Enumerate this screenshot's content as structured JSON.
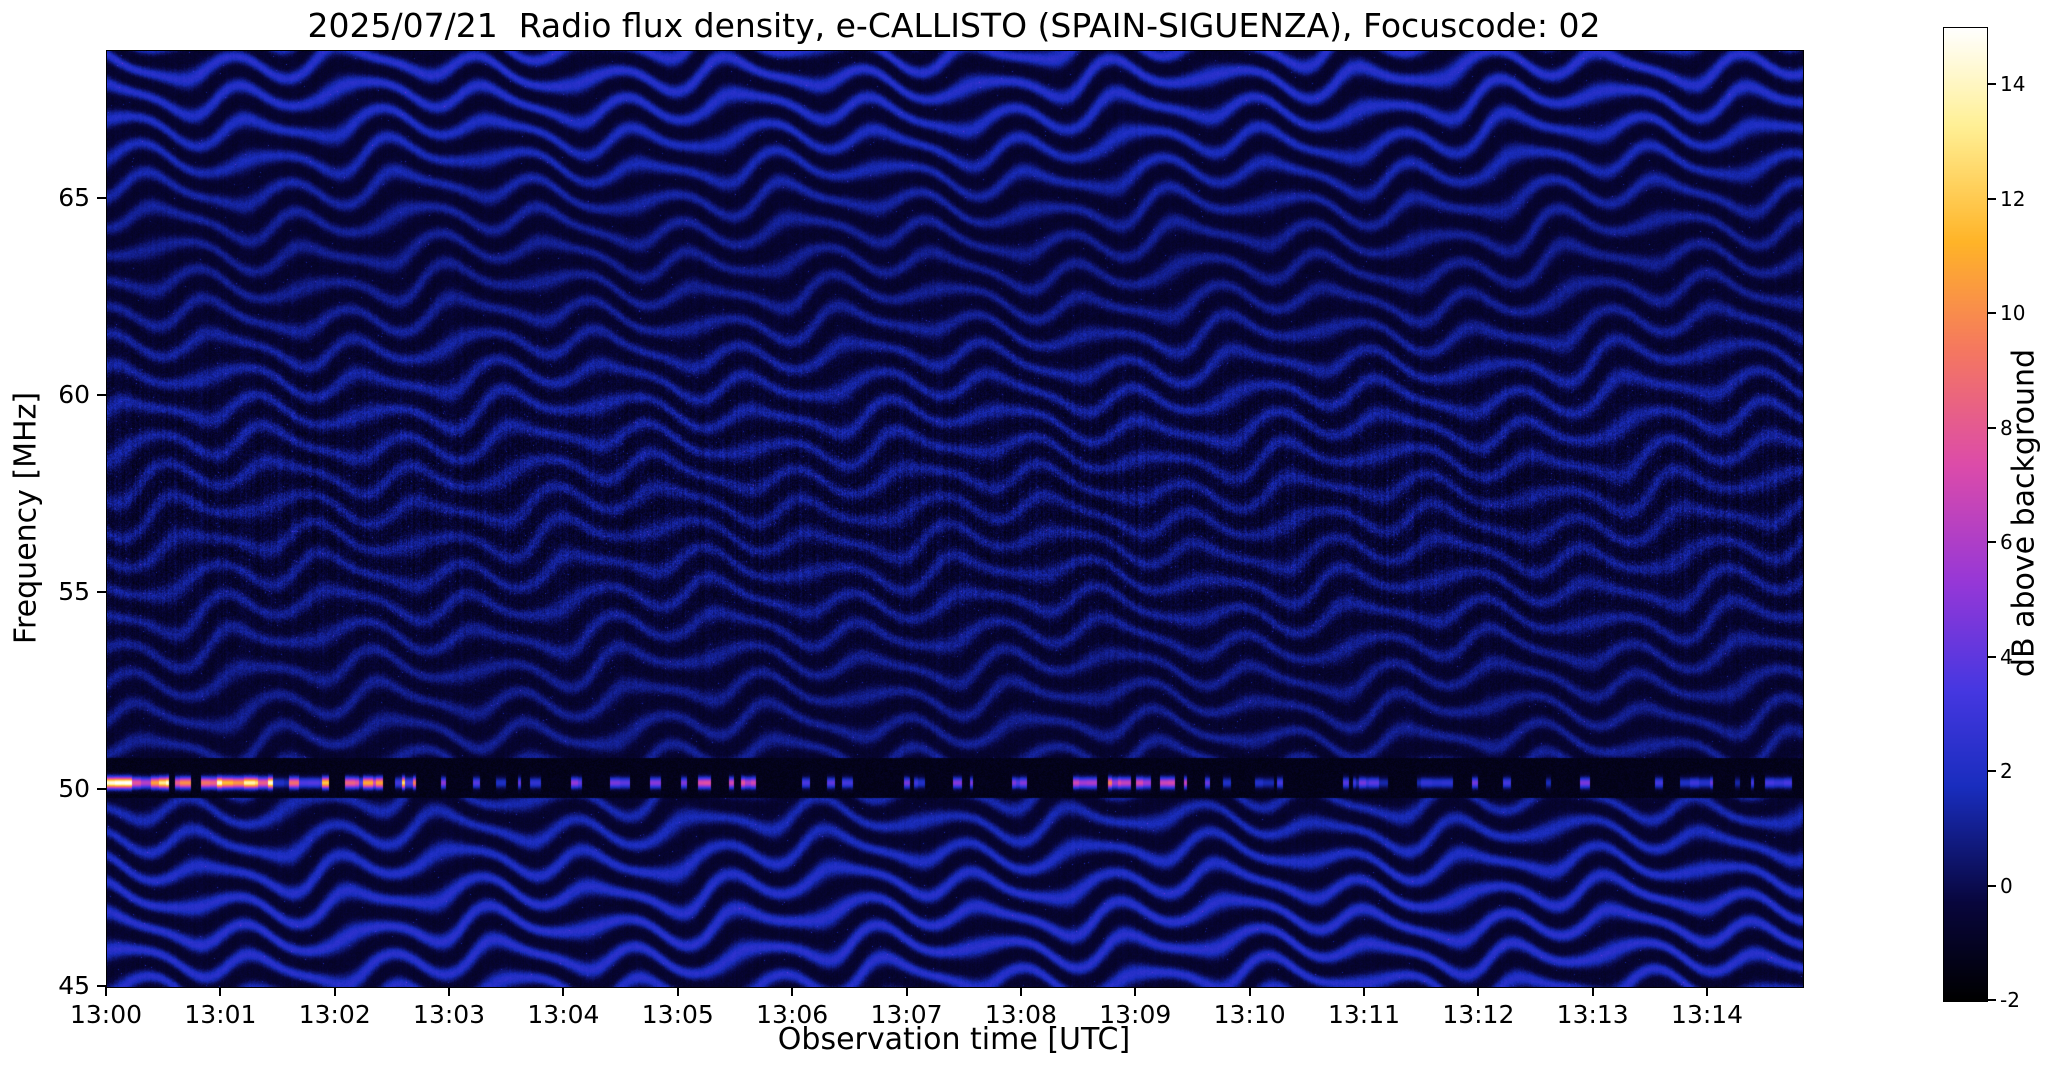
{
  "chart_data": {
    "type": "heatmap",
    "title": "2025/07/21  Radio flux density, e-CALLISTO (SPAIN-SIGUENZA), Focuscode: 02",
    "xlabel": "Observation time [UTC]",
    "ylabel": "Frequency [MHz]",
    "colorbar_label": "dB above background",
    "x_tick_labels": [
      "13:00",
      "13:01",
      "13:02",
      "13:03",
      "13:04",
      "13:05",
      "13:06",
      "13:07",
      "13:08",
      "13:09",
      "13:10",
      "13:11",
      "13:12",
      "13:13",
      "13:14"
    ],
    "x_tick_minutes": [
      0,
      1,
      2,
      3,
      4,
      5,
      6,
      7,
      8,
      9,
      10,
      11,
      12,
      13,
      14
    ],
    "x_range_minutes": [
      0,
      14.83
    ],
    "y_ticks": [
      45,
      50,
      55,
      60,
      65
    ],
    "y_range_mhz": [
      45,
      68.75
    ],
    "colorbar_ticks": [
      -2,
      0,
      2,
      4,
      6,
      8,
      10,
      12,
      14
    ],
    "value_range_db": [
      -2,
      15
    ],
    "grid": false,
    "legend": "colorbar-right",
    "colormap": {
      "name": "gnuplot2-like",
      "stops": [
        [
          0.0,
          0,
          0,
          0
        ],
        [
          0.1,
          8,
          6,
          60
        ],
        [
          0.22,
          25,
          45,
          190
        ],
        [
          0.32,
          70,
          55,
          225
        ],
        [
          0.43,
          150,
          55,
          215
        ],
        [
          0.55,
          220,
          75,
          170
        ],
        [
          0.67,
          245,
          120,
          95
        ],
        [
          0.78,
          255,
          180,
          40
        ],
        [
          0.9,
          255,
          240,
          150
        ],
        [
          1.0,
          255,
          255,
          255
        ]
      ]
    },
    "features": {
      "description": "Dark blue spectrogram dominated by wavy quasi-horizontal interference fringes (~0.8 MHz spacing) that weaken into speckle noise around 55-59 MHz; a narrowband RFI line near 50.2 MHz sits inside a dark suppressed band, brightest (up to ~15 dB, yellow/white blobs) from 13:00 to about 13:02.5, with intermittent pink/violet bursts later (notably near 13:08.5).",
      "fringes": {
        "spacing_mhz": 0.8,
        "amplitude_db": 2.7,
        "weak_band_center_mhz": 57.2,
        "weak_band_sigma_mhz": 3.4,
        "wobble_amplitude_mhz": 0.35
      },
      "rfi_line": {
        "frequency_mhz": 50.18,
        "sigma_mhz": 0.1,
        "dark_band_mhz": [
          49.8,
          50.8
        ],
        "peak_db": 15,
        "bright_until_minute": 2.7
      },
      "noise": {
        "base_db": -0.7,
        "speckle_db": 1.0
      },
      "seed": 12345
    }
  }
}
